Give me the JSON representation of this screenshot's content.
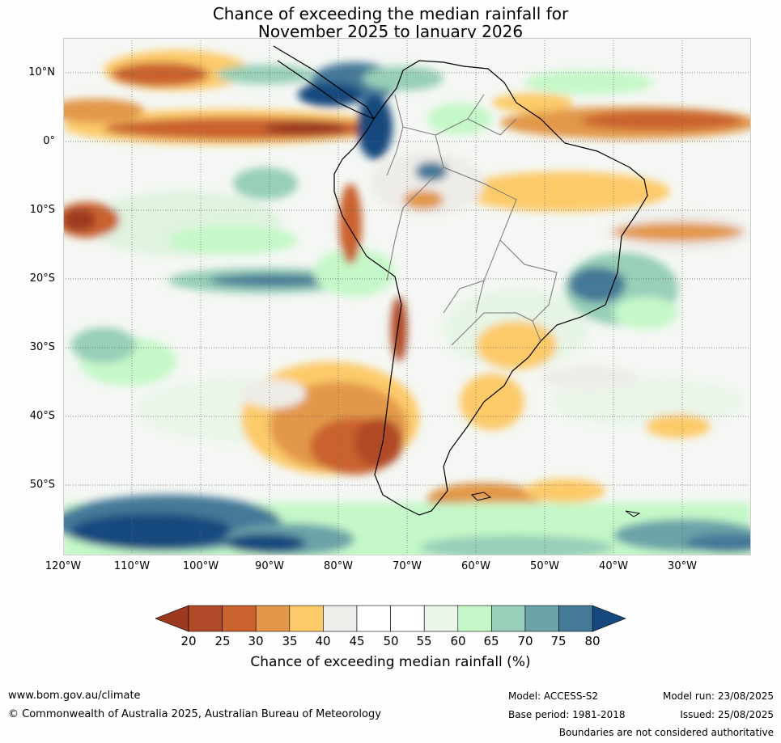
{
  "title_line1": "Chance of exceeding the median rainfall for",
  "title_line2": "November 2025 to January 2026",
  "lat_labels": [
    "10°N",
    "0°",
    "10°S",
    "20°S",
    "30°S",
    "40°S",
    "50°S"
  ],
  "lon_labels": [
    "120°W",
    "110°W",
    "100°W",
    "90°W",
    "80°W",
    "70°W",
    "60°W",
    "50°W",
    "40°W",
    "30°W"
  ],
  "colorbar": {
    "ticks": [
      "20",
      "25",
      "30",
      "35",
      "40",
      "45",
      "50",
      "55",
      "60",
      "65",
      "70",
      "75",
      "80"
    ],
    "colors": [
      "#9c3a20",
      "#b04a28",
      "#c9622e",
      "#e29848",
      "#fdca6a",
      "#efedea",
      "#ffffff",
      "#ffffff",
      "#e9f6e9",
      "#c5f8c8",
      "#97cfb8",
      "#6aa3a8",
      "#447998",
      "#15497e"
    ],
    "label": "Chance of exceeding median rainfall (%)"
  },
  "footer": {
    "url": "www.bom.gov.au/climate",
    "copyright": "© Commonwealth of Australia 2025, Australian Bureau of Meteorology",
    "model": "Model: ACCESS-S2",
    "base_period": "Base period: 1981-2018",
    "model_run": "Model run: 23/08/2025",
    "issued": "Issued: 25/08/2025",
    "disclaimer": "Boundaries are not considered authoritative"
  }
}
